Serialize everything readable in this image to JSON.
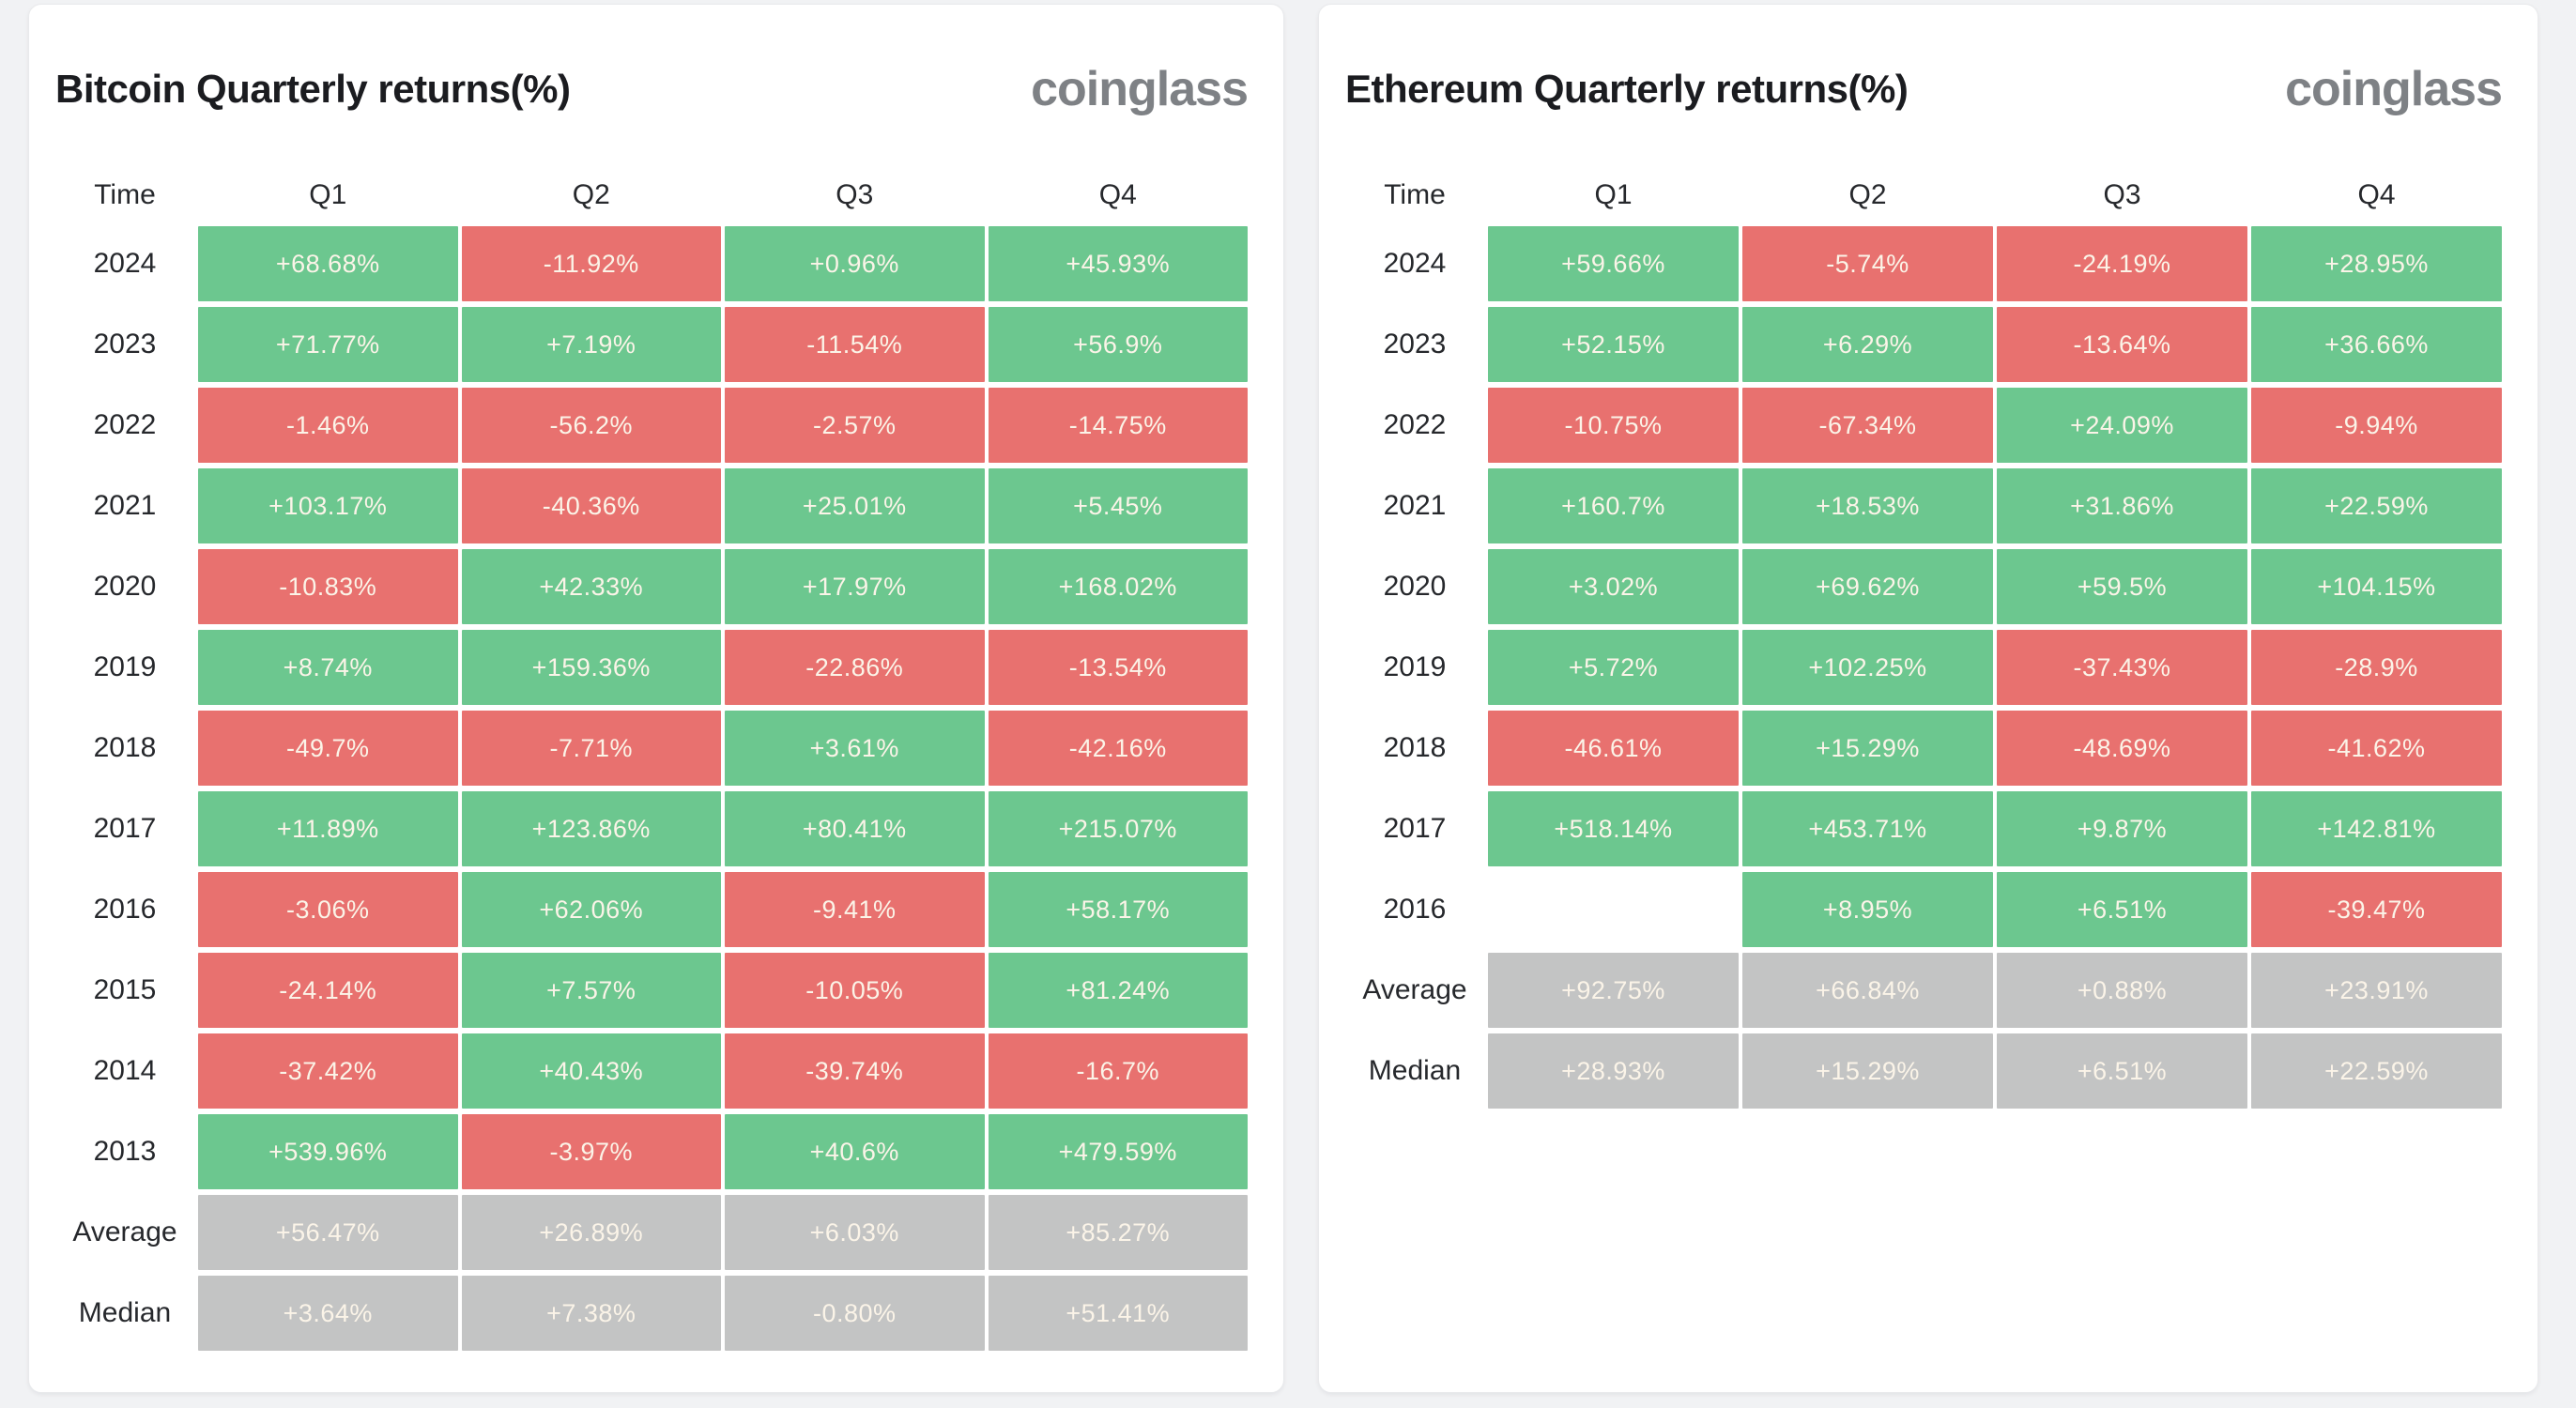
{
  "colors": {
    "positive": "#6cc78f",
    "negative": "#e8716f",
    "stat": "#c3c4c4",
    "page_bg": "#f1f2f4",
    "panel_bg": "#ffffff",
    "cell_text": "#fbf4e8",
    "label_text": "#26282c",
    "logo_text": "#7e8185"
  },
  "tables": [
    {
      "title": "Bitcoin Quarterly returns(%)",
      "logo": "coinglass",
      "columns": [
        "Time",
        "Q1",
        "Q2",
        "Q3",
        "Q4"
      ],
      "rows": [
        {
          "label": "2024",
          "kind": "year",
          "values": [
            "+68.68%",
            "-11.92%",
            "+0.96%",
            "+45.93%"
          ]
        },
        {
          "label": "2023",
          "kind": "year",
          "values": [
            "+71.77%",
            "+7.19%",
            "-11.54%",
            "+56.9%"
          ]
        },
        {
          "label": "2022",
          "kind": "year",
          "values": [
            "-1.46%",
            "-56.2%",
            "-2.57%",
            "-14.75%"
          ]
        },
        {
          "label": "2021",
          "kind": "year",
          "values": [
            "+103.17%",
            "-40.36%",
            "+25.01%",
            "+5.45%"
          ]
        },
        {
          "label": "2020",
          "kind": "year",
          "values": [
            "-10.83%",
            "+42.33%",
            "+17.97%",
            "+168.02%"
          ]
        },
        {
          "label": "2019",
          "kind": "year",
          "values": [
            "+8.74%",
            "+159.36%",
            "-22.86%",
            "-13.54%"
          ]
        },
        {
          "label": "2018",
          "kind": "year",
          "values": [
            "-49.7%",
            "-7.71%",
            "+3.61%",
            "-42.16%"
          ]
        },
        {
          "label": "2017",
          "kind": "year",
          "values": [
            "+11.89%",
            "+123.86%",
            "+80.41%",
            "+215.07%"
          ]
        },
        {
          "label": "2016",
          "kind": "year",
          "values": [
            "-3.06%",
            "+62.06%",
            "-9.41%",
            "+58.17%"
          ]
        },
        {
          "label": "2015",
          "kind": "year",
          "values": [
            "-24.14%",
            "+7.57%",
            "-10.05%",
            "+81.24%"
          ]
        },
        {
          "label": "2014",
          "kind": "year",
          "values": [
            "-37.42%",
            "+40.43%",
            "-39.74%",
            "-16.7%"
          ]
        },
        {
          "label": "2013",
          "kind": "year",
          "values": [
            "+539.96%",
            "-3.97%",
            "+40.6%",
            "+479.59%"
          ]
        },
        {
          "label": "Average",
          "kind": "stat",
          "values": [
            "+56.47%",
            "+26.89%",
            "+6.03%",
            "+85.27%"
          ]
        },
        {
          "label": "Median",
          "kind": "stat",
          "values": [
            "+3.64%",
            "+7.38%",
            "-0.80%",
            "+51.41%"
          ]
        }
      ]
    },
    {
      "title": "Ethereum Quarterly returns(%)",
      "logo": "coinglass",
      "columns": [
        "Time",
        "Q1",
        "Q2",
        "Q3",
        "Q4"
      ],
      "rows": [
        {
          "label": "2024",
          "kind": "year",
          "values": [
            "+59.66%",
            "-5.74%",
            "-24.19%",
            "+28.95%"
          ]
        },
        {
          "label": "2023",
          "kind": "year",
          "values": [
            "+52.15%",
            "+6.29%",
            "-13.64%",
            "+36.66%"
          ]
        },
        {
          "label": "2022",
          "kind": "year",
          "values": [
            "-10.75%",
            "-67.34%",
            "+24.09%",
            "-9.94%"
          ]
        },
        {
          "label": "2021",
          "kind": "year",
          "values": [
            "+160.7%",
            "+18.53%",
            "+31.86%",
            "+22.59%"
          ]
        },
        {
          "label": "2020",
          "kind": "year",
          "values": [
            "+3.02%",
            "+69.62%",
            "+59.5%",
            "+104.15%"
          ]
        },
        {
          "label": "2019",
          "kind": "year",
          "values": [
            "+5.72%",
            "+102.25%",
            "-37.43%",
            "-28.9%"
          ]
        },
        {
          "label": "2018",
          "kind": "year",
          "values": [
            "-46.61%",
            "+15.29%",
            "-48.69%",
            "-41.62%"
          ]
        },
        {
          "label": "2017",
          "kind": "year",
          "values": [
            "+518.14%",
            "+453.71%",
            "+9.87%",
            "+142.81%"
          ]
        },
        {
          "label": "2016",
          "kind": "year",
          "values": [
            "",
            "+8.95%",
            "+6.51%",
            "-39.47%"
          ]
        },
        {
          "label": "Average",
          "kind": "stat",
          "values": [
            "+92.75%",
            "+66.84%",
            "+0.88%",
            "+23.91%"
          ]
        },
        {
          "label": "Median",
          "kind": "stat",
          "values": [
            "+28.93%",
            "+15.29%",
            "+6.51%",
            "+22.59%"
          ]
        }
      ]
    }
  ],
  "chart_data": [
    {
      "type": "heatmap",
      "title": "Bitcoin Quarterly returns(%)",
      "categories": [
        "Q1",
        "Q2",
        "Q3",
        "Q4"
      ],
      "rows": [
        "2024",
        "2023",
        "2022",
        "2021",
        "2020",
        "2019",
        "2018",
        "2017",
        "2016",
        "2015",
        "2014",
        "2013",
        "Average",
        "Median"
      ],
      "values": [
        [
          68.68,
          -11.92,
          0.96,
          45.93
        ],
        [
          71.77,
          7.19,
          -11.54,
          56.9
        ],
        [
          -1.46,
          -56.2,
          -2.57,
          -14.75
        ],
        [
          103.17,
          -40.36,
          25.01,
          5.45
        ],
        [
          -10.83,
          42.33,
          17.97,
          168.02
        ],
        [
          8.74,
          159.36,
          -22.86,
          -13.54
        ],
        [
          -49.7,
          -7.71,
          3.61,
          -42.16
        ],
        [
          11.89,
          123.86,
          80.41,
          215.07
        ],
        [
          -3.06,
          62.06,
          -9.41,
          58.17
        ],
        [
          -24.14,
          7.57,
          -10.05,
          81.24
        ],
        [
          -37.42,
          40.43,
          -39.74,
          -16.7
        ],
        [
          539.96,
          -3.97,
          40.6,
          479.59
        ],
        [
          56.47,
          26.89,
          6.03,
          85.27
        ],
        [
          3.64,
          7.38,
          -0.8,
          51.41
        ]
      ],
      "legend_position": "none",
      "color_rule": "green = positive return, red = negative return, gray = Average/Median summary rows"
    },
    {
      "type": "heatmap",
      "title": "Ethereum Quarterly returns(%)",
      "categories": [
        "Q1",
        "Q2",
        "Q3",
        "Q4"
      ],
      "rows": [
        "2024",
        "2023",
        "2022",
        "2021",
        "2020",
        "2019",
        "2018",
        "2017",
        "2016",
        "Average",
        "Median"
      ],
      "values": [
        [
          59.66,
          -5.74,
          -24.19,
          28.95
        ],
        [
          52.15,
          6.29,
          -13.64,
          36.66
        ],
        [
          -10.75,
          -67.34,
          24.09,
          -9.94
        ],
        [
          160.7,
          18.53,
          31.86,
          22.59
        ],
        [
          3.02,
          69.62,
          59.5,
          104.15
        ],
        [
          5.72,
          102.25,
          -37.43,
          -28.9
        ],
        [
          -46.61,
          15.29,
          -48.69,
          -41.62
        ],
        [
          518.14,
          453.71,
          9.87,
          142.81
        ],
        [
          null,
          8.95,
          6.51,
          -39.47
        ],
        [
          92.75,
          66.84,
          0.88,
          23.91
        ],
        [
          28.93,
          15.29,
          6.51,
          22.59
        ]
      ],
      "legend_position": "none",
      "color_rule": "green = positive return, red = negative return, gray = Average/Median summary rows"
    }
  ]
}
